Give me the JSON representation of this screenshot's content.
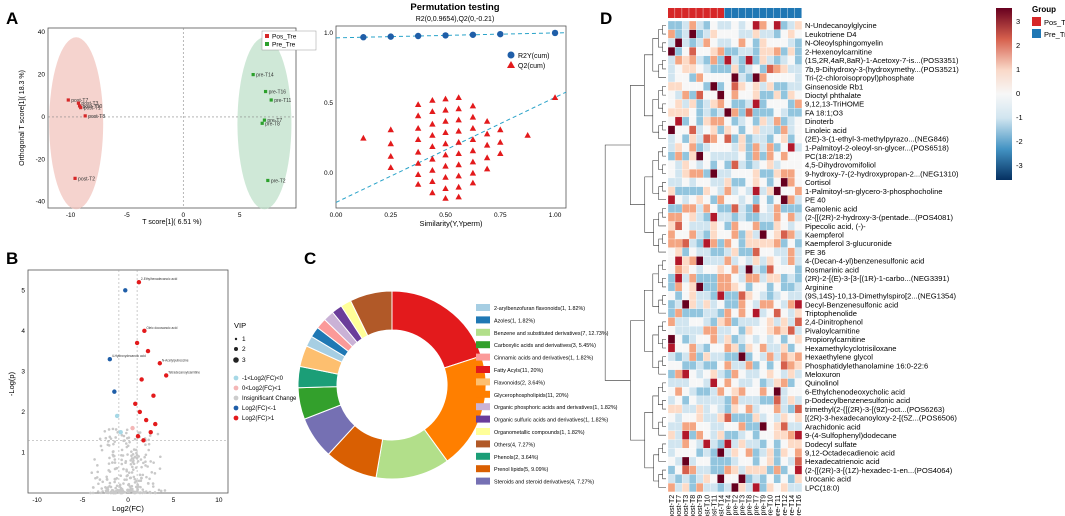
{
  "panel_labels": {
    "a": "A",
    "b": "B",
    "c": "C",
    "d": "D"
  },
  "colors": {
    "pos": "#d62728",
    "pre": "#1f77b4",
    "pos_ellipse": "#f2c4bd",
    "pre_ellipse": "#bfe0c9",
    "post_pt": "#d62728",
    "pre_pt": "#2ca02c",
    "r2y": "#1f5ea8",
    "q2": "#e31a1c"
  },
  "pca": {
    "type": "scatter",
    "xlabel": "T score[1]( 6.51 %)",
    "ylabel": "Orthogonal T score[1]( 18.3 %)",
    "xlim": [
      -12,
      10
    ],
    "ylim": [
      -43,
      42
    ],
    "xticks": [
      "-10",
      "-5",
      "0",
      "5"
    ],
    "yticks": [
      "40",
      "20",
      "0",
      "-20",
      "-40"
    ],
    "legend": [
      {
        "label": "Pos_Tre",
        "key": "post"
      },
      {
        "label": "Pre_Tre",
        "key": "pre"
      }
    ],
    "points": [
      {
        "label": "post-T7",
        "x": -10.2,
        "y": 8,
        "g": "post"
      },
      {
        "label": "post-T3",
        "x": -9.3,
        "y": 6.5,
        "g": "post"
      },
      {
        "label": "post-T10",
        "x": -9.2,
        "y": 5.2,
        "g": "post"
      },
      {
        "label": "post-T1",
        "x": -9.1,
        "y": 4.4,
        "g": "post"
      },
      {
        "label": "post-T8",
        "x": -8.7,
        "y": 0.5,
        "g": "post"
      },
      {
        "label": "post-T2",
        "x": -9.6,
        "y": -29,
        "g": "post"
      },
      {
        "label": "pre-T14",
        "x": 6.2,
        "y": 20,
        "g": "pre"
      },
      {
        "label": "pre-T16",
        "x": 7.3,
        "y": 12,
        "g": "pre"
      },
      {
        "label": "pre-T11",
        "x": 7.8,
        "y": 8,
        "g": "pre"
      },
      {
        "label": "pre-T7",
        "x": 7.2,
        "y": -1.5,
        "g": "pre"
      },
      {
        "label": "pre-T8",
        "x": 7,
        "y": -3,
        "g": "pre"
      },
      {
        "label": "pre-T2",
        "x": 7.5,
        "y": -30,
        "g": "pre"
      }
    ]
  },
  "perm": {
    "type": "scatter",
    "title": "Permutation testing",
    "subtitle": "R2(0,0.9654),Q2(0,-0.21)",
    "xlabel": "Similarity(Y,Yperm)",
    "ylabel": "",
    "xlim": [
      0,
      1.05
    ],
    "ylim": [
      -0.25,
      1.05
    ],
    "xticks": [
      "0.00",
      "0.25",
      "0.50",
      "0.75",
      "1.00"
    ],
    "yticks": [
      "1.0",
      "0.5",
      "0.0"
    ],
    "legend": [
      "R2Y(cum)",
      "Q2(cum)"
    ],
    "r2_line": {
      "intercept": 0.9654,
      "slope": 0.035
    },
    "q2_line": {
      "intercept": -0.21,
      "slope": 0.75
    },
    "r2_points_x": [
      0.125,
      0.25,
      0.375,
      0.5,
      0.625,
      0.75,
      1.0
    ],
    "q2_columns": [
      {
        "x": 0.125,
        "values": [
          0.25
        ]
      },
      {
        "x": 0.25,
        "values": [
          0.31,
          0.21,
          0.12,
          0.04
        ]
      },
      {
        "x": 0.375,
        "values": [
          0.49,
          0.41,
          0.32,
          0.24,
          0.15,
          0.07,
          -0.01,
          -0.08
        ]
      },
      {
        "x": 0.44,
        "values": [
          0.52,
          0.44,
          0.35,
          0.27,
          0.19,
          0.1,
          0.02,
          -0.06,
          -0.14
        ]
      },
      {
        "x": 0.5,
        "values": [
          0.53,
          0.45,
          0.37,
          0.29,
          0.21,
          0.13,
          0.05,
          -0.03,
          -0.11,
          -0.18
        ]
      },
      {
        "x": 0.56,
        "values": [
          0.54,
          0.46,
          0.38,
          0.3,
          0.22,
          0.14,
          0.06,
          -0.02,
          -0.1,
          -0.17
        ]
      },
      {
        "x": 0.625,
        "values": [
          0.48,
          0.4,
          0.32,
          0.24,
          0.16,
          0.08,
          0.0,
          -0.07
        ]
      },
      {
        "x": 0.69,
        "values": [
          0.37,
          0.28,
          0.2,
          0.11,
          0.03
        ]
      },
      {
        "x": 0.75,
        "values": [
          0.31,
          0.22,
          0.14
        ]
      },
      {
        "x": 0.875,
        "values": [
          0.27
        ]
      },
      {
        "x": 1.0,
        "values": [
          0.54
        ]
      }
    ]
  },
  "volcano": {
    "type": "scatter",
    "xlabel": "Log2(FC)",
    "ylabel": "-Log(p)",
    "xlim": [
      -11,
      11
    ],
    "ylim": [
      0,
      5.5
    ],
    "xticks": [
      "-10",
      "-5",
      "0",
      "5",
      "10"
    ],
    "yticks": [
      "5",
      "4",
      "3",
      "2",
      "1"
    ],
    "vip_title": "VIP",
    "vip_sizes": [
      "1",
      "2",
      "3"
    ],
    "legend": [
      {
        "label": "-1<Log2(FC)<0",
        "color": "#a6d8e6"
      },
      {
        "label": "0<Log2(FC)<1",
        "color": "#f4b6b6"
      },
      {
        "label": "Insignificant Change",
        "color": "#cccccc"
      },
      {
        "label": "Log2(FC)<-1",
        "color": "#1f5ea8"
      },
      {
        "label": "Log2(FC)>1",
        "color": "#e31a1c"
      }
    ],
    "annotations": [
      "2-Ethylhexadecanoic acid",
      "Oleic docosanoic acid",
      "4-Hydroxydecanoic acid",
      "N-Acetylputrescine",
      "Tetradecanoylcarnitine"
    ],
    "highlights": [
      {
        "x": 1.2,
        "y": 5.2,
        "c": "#e31a1c"
      },
      {
        "x": -0.3,
        "y": 5.0,
        "c": "#1f5ea8"
      },
      {
        "x": 1.8,
        "y": 4.0,
        "c": "#e31a1c"
      },
      {
        "x": 1.0,
        "y": 3.7,
        "c": "#e31a1c"
      },
      {
        "x": 2.2,
        "y": 3.5,
        "c": "#e31a1c"
      },
      {
        "x": -2.0,
        "y": 3.3,
        "c": "#1f5ea8"
      },
      {
        "x": 3.5,
        "y": 3.2,
        "c": "#e31a1c"
      },
      {
        "x": 4.2,
        "y": 2.9,
        "c": "#e31a1c"
      },
      {
        "x": 1.5,
        "y": 2.8,
        "c": "#e31a1c"
      },
      {
        "x": -1.5,
        "y": 2.5,
        "c": "#1f5ea8"
      },
      {
        "x": 2.8,
        "y": 2.4,
        "c": "#e31a1c"
      },
      {
        "x": 0.8,
        "y": 2.2,
        "c": "#e31a1c"
      },
      {
        "x": 1.3,
        "y": 2.0,
        "c": "#e31a1c"
      },
      {
        "x": 2.0,
        "y": 1.8,
        "c": "#e31a1c"
      },
      {
        "x": -1.2,
        "y": 1.9,
        "c": "#a6d8e6"
      },
      {
        "x": 0.5,
        "y": 1.6,
        "c": "#f4b6b6"
      },
      {
        "x": 2.5,
        "y": 1.5,
        "c": "#e31a1c"
      },
      {
        "x": 1.1,
        "y": 1.4,
        "c": "#e31a1c"
      },
      {
        "x": 3.0,
        "y": 1.7,
        "c": "#e31a1c"
      },
      {
        "x": -0.8,
        "y": 1.5,
        "c": "#a6d8e6"
      },
      {
        "x": 1.7,
        "y": 1.3,
        "c": "#e31a1c"
      }
    ]
  },
  "pie": {
    "type": "pie",
    "slices": [
      {
        "label": "2-arylbenzofuran flavonoids(1, 1.82%)",
        "value": 1.82,
        "color": "#a6cee3"
      },
      {
        "label": "Azoles(1, 1.82%)",
        "value": 1.82,
        "color": "#1f78b4"
      },
      {
        "label": "Benzene and substituted derivatives(7, 12.73%)",
        "value": 12.73,
        "color": "#b2df8a"
      },
      {
        "label": "Carboxylic acids and derivatives(3, 5.45%)",
        "value": 5.45,
        "color": "#33a02c"
      },
      {
        "label": "Cinnamic acids and derivatives(1, 1.82%)",
        "value": 1.82,
        "color": "#fb9a99"
      },
      {
        "label": "Fatty Acyls(11, 20%)",
        "value": 20.0,
        "color": "#e31a1c"
      },
      {
        "label": "Flavonoids(2, 3.64%)",
        "value": 3.64,
        "color": "#fdbf6f"
      },
      {
        "label": "Glycerophospholipids(11, 20%)",
        "value": 20.0,
        "color": "#ff7f00"
      },
      {
        "label": "Organic phosphoric acids and derivatives(1, 1.82%)",
        "value": 1.82,
        "color": "#cab2d6"
      },
      {
        "label": "Organic sulfuric acids and derivatives(1, 1.82%)",
        "value": 1.82,
        "color": "#6a3d9a"
      },
      {
        "label": "Organometallic compounds(1, 1.82%)",
        "value": 1.82,
        "color": "#ffff99"
      },
      {
        "label": "Others(4, 7.27%)",
        "value": 7.27,
        "color": "#b15928"
      },
      {
        "label": "Phenols(2, 3.64%)",
        "value": 3.64,
        "color": "#1b9e77"
      },
      {
        "label": "Prenol lipids(5, 9.09%)",
        "value": 9.09,
        "color": "#d95f02"
      },
      {
        "label": "Steroids and steroid derivatives(4, 7.27%)",
        "value": 7.27,
        "color": "#7570b3"
      }
    ]
  },
  "heatmap": {
    "type": "heatmap",
    "group_title": "Group",
    "group_legend": [
      "Pos_Tre",
      "Pre_Tre"
    ],
    "scale_ticks": [
      "3",
      "2",
      "1",
      "0",
      "-1",
      "-2",
      "-3"
    ],
    "columns": [
      "post-T2",
      "post-T7",
      "post-T3",
      "post-T8",
      "post-T9",
      "post-T10",
      "post-T11",
      "post-T14",
      "pre-T4",
      "pre-T2",
      "pre-T3",
      "pre-T8",
      "pre-T7",
      "pre-T9",
      "pre-T10",
      "pre-T11",
      "pre-T12",
      "pre-T14",
      "pre-T16"
    ],
    "col_groups": [
      "pos",
      "pos",
      "pos",
      "pos",
      "pos",
      "pos",
      "pos",
      "pos",
      "pre",
      "pre",
      "pre",
      "pre",
      "pre",
      "pre",
      "pre",
      "pre",
      "pre",
      "pre",
      "pre"
    ],
    "rows": [
      "N-Undecanoylglycine",
      "Leukotriene D4",
      "N-Oleoylsphingomyelin",
      "2-Hexenoylcarnitine",
      "(1S,2R,4aR,8aR)-1-Acetoxy-7-is...(POS3351)",
      "7b,9-Dihydroxy-3-(hydroxymethy...(POS3521)",
      "Tri-(2-chloroisopropyl)phosphate",
      "Ginsenoside Rb1",
      "Dioctyl phthalate",
      "9,12,13-TriHOME",
      "FA 18:1;O3",
      "Dinoterb",
      "Linoleic acid",
      "(2E)-3-(1-ethyl-3-methylpyrazo...(NEG846)",
      "1-Palmitoyl-2-oleoyl-sn-glycer...(POS6518)",
      "PC(18:2/18:2)",
      "4,5-Dihydrovomifoliol",
      "9-hydroxy-7-(2-hydroxypropan-2...(NEG1310)",
      "Cortisol",
      "1-Palmitoyl-sn-glycero-3-phosphocholine",
      "PE 40",
      "Gamolenic acid",
      "(2-{[(2R)-2-hydroxy-3-(pentade...(POS4081)",
      "Pipecolic acid, (-)-",
      "Kaempferol",
      "Kaempferol 3-glucuronide",
      "PE 36",
      "4-(Decan-4-yl)benzenesulfonic acid",
      "Rosmarinic acid",
      "(2R)-2-[(E)-3-[3-[(1R)-1-carbo...(NEG3391)",
      "Arginine",
      "(9S,14S)-10,13-Dimethylspiro[2...(NEG1354)",
      "Decyl-Benzenesulfonic acid",
      "Triptophenolide",
      "2,4-Dinitrophenol",
      "Pivaloylcarnitine",
      "Propionylcarnitine",
      "Hexamethylcyclotrisiloxane",
      "Hexaethylene glycol",
      "Phosphatidylethanolamine 16:0-22:6",
      "Meloxuron",
      "Quinolinol",
      "6-Ethylchenodeoxycholic acid",
      "p-Dodecylbenzenesulfonic acid",
      "trimethyl(2-{[(2R)-3-[(9Z)-oct...(POS6263)",
      "[(2R)-3-hexadecanoyloxy-2-[(5Z...(POS6506)",
      "Arachidonic acid",
      "9-(4-Sulfophenyl)dodecane",
      "Dodecyl sulfate",
      "9,12-Octadecadienoic acid",
      "Hexadecatrienoic acid",
      "(2-{[(2R)-3-[(1Z)-hexadec-1-en...(POS4064)",
      "Urocanic acid",
      "LPC(18:0)"
    ]
  }
}
